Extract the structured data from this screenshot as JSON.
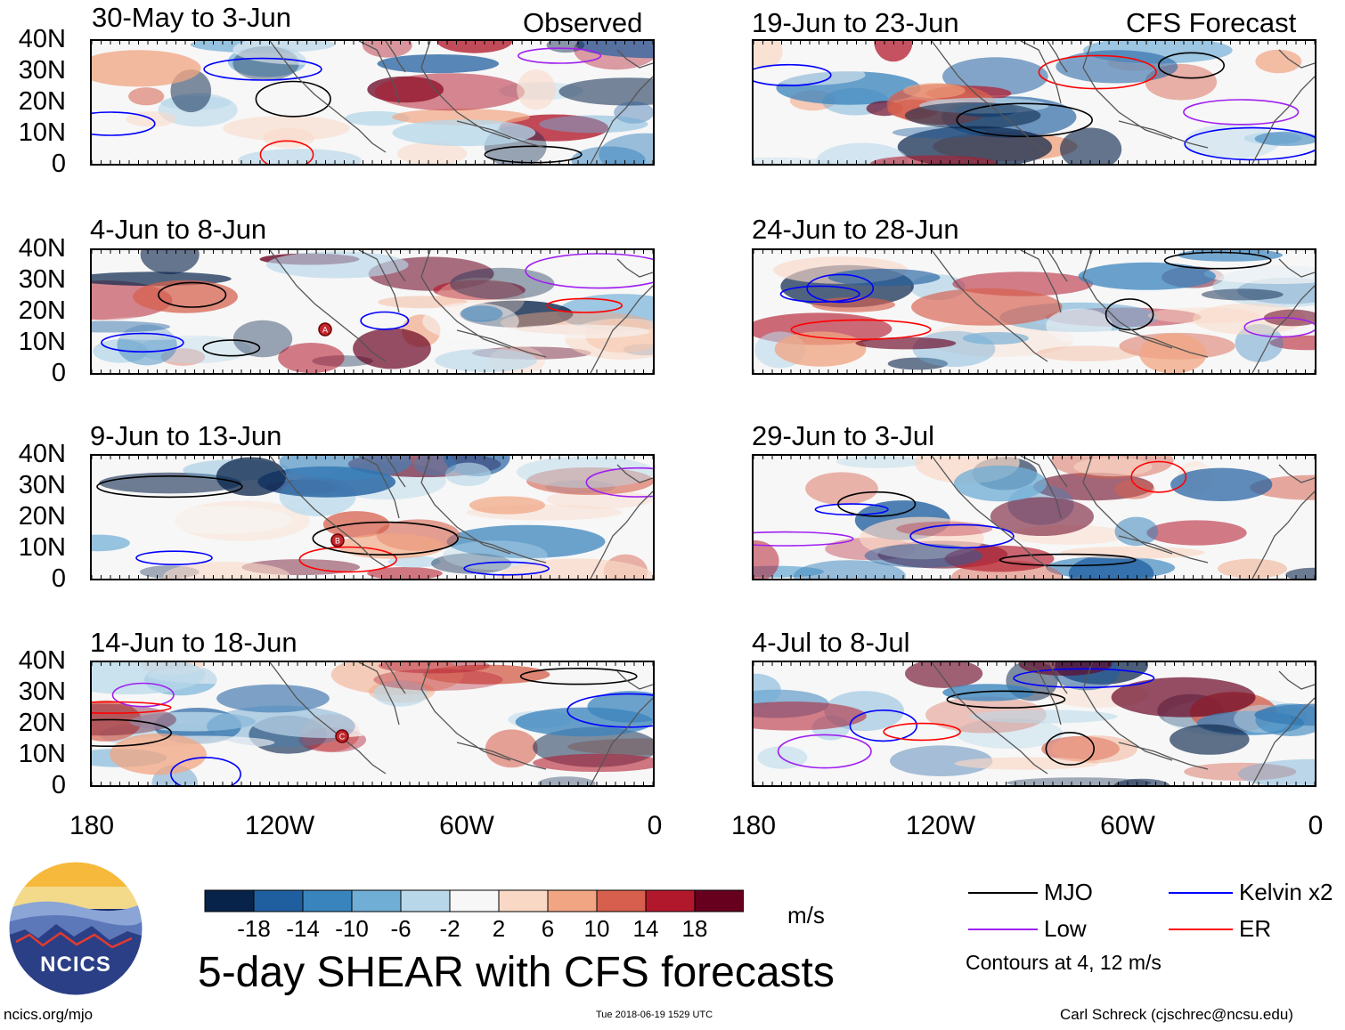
{
  "observed_label": "Observed",
  "forecast_label": "CFS Forecast",
  "panels": [
    {
      "title": "30-May to 3-Jun"
    },
    {
      "title": "19-Jun to 23-Jun"
    },
    {
      "title": "4-Jun to 8-Jun"
    },
    {
      "title": "24-Jun to 28-Jun"
    },
    {
      "title": "9-Jun to 13-Jun"
    },
    {
      "title": "29-Jun to 3-Jul"
    },
    {
      "title": "14-Jun to 18-Jun"
    },
    {
      "title": "4-Jul to 8-Jul"
    }
  ],
  "lat_ticks": [
    "40N",
    "30N",
    "20N",
    "10N",
    "0"
  ],
  "lon_ticks": [
    "180",
    "120W",
    "60W",
    "0"
  ],
  "storm_markers": [
    "A",
    "B",
    "C"
  ],
  "colorbar": {
    "colors": [
      "#08234a",
      "#1f5fa0",
      "#3a84bd",
      "#70aed6",
      "#b8d8ea",
      "#f7f7f7",
      "#fad8c6",
      "#f1a582",
      "#d6604d",
      "#b2182b",
      "#67001f"
    ],
    "labels": [
      "-18",
      "-14",
      "-10",
      "-6",
      "-2",
      "2",
      "6",
      "10",
      "14",
      "18"
    ],
    "units": "m/s"
  },
  "main_title": "5-day SHEAR with CFS forecasts",
  "legend": {
    "items": [
      {
        "label": "MJO",
        "color": "#000000"
      },
      {
        "label": "Kelvin x2",
        "color": "#0000ff"
      },
      {
        "label": "Low",
        "color": "#a020f0"
      },
      {
        "label": "ER",
        "color": "#ff0000"
      }
    ],
    "note": "Contours at 4, 12 m/s"
  },
  "logo_text": "NCICS",
  "footer": {
    "left": "ncics.org/mjo",
    "center": "Tue 2018-06-19 1529 UTC",
    "right": "Carl Schreck (cjschrec@ncsu.edu)"
  }
}
